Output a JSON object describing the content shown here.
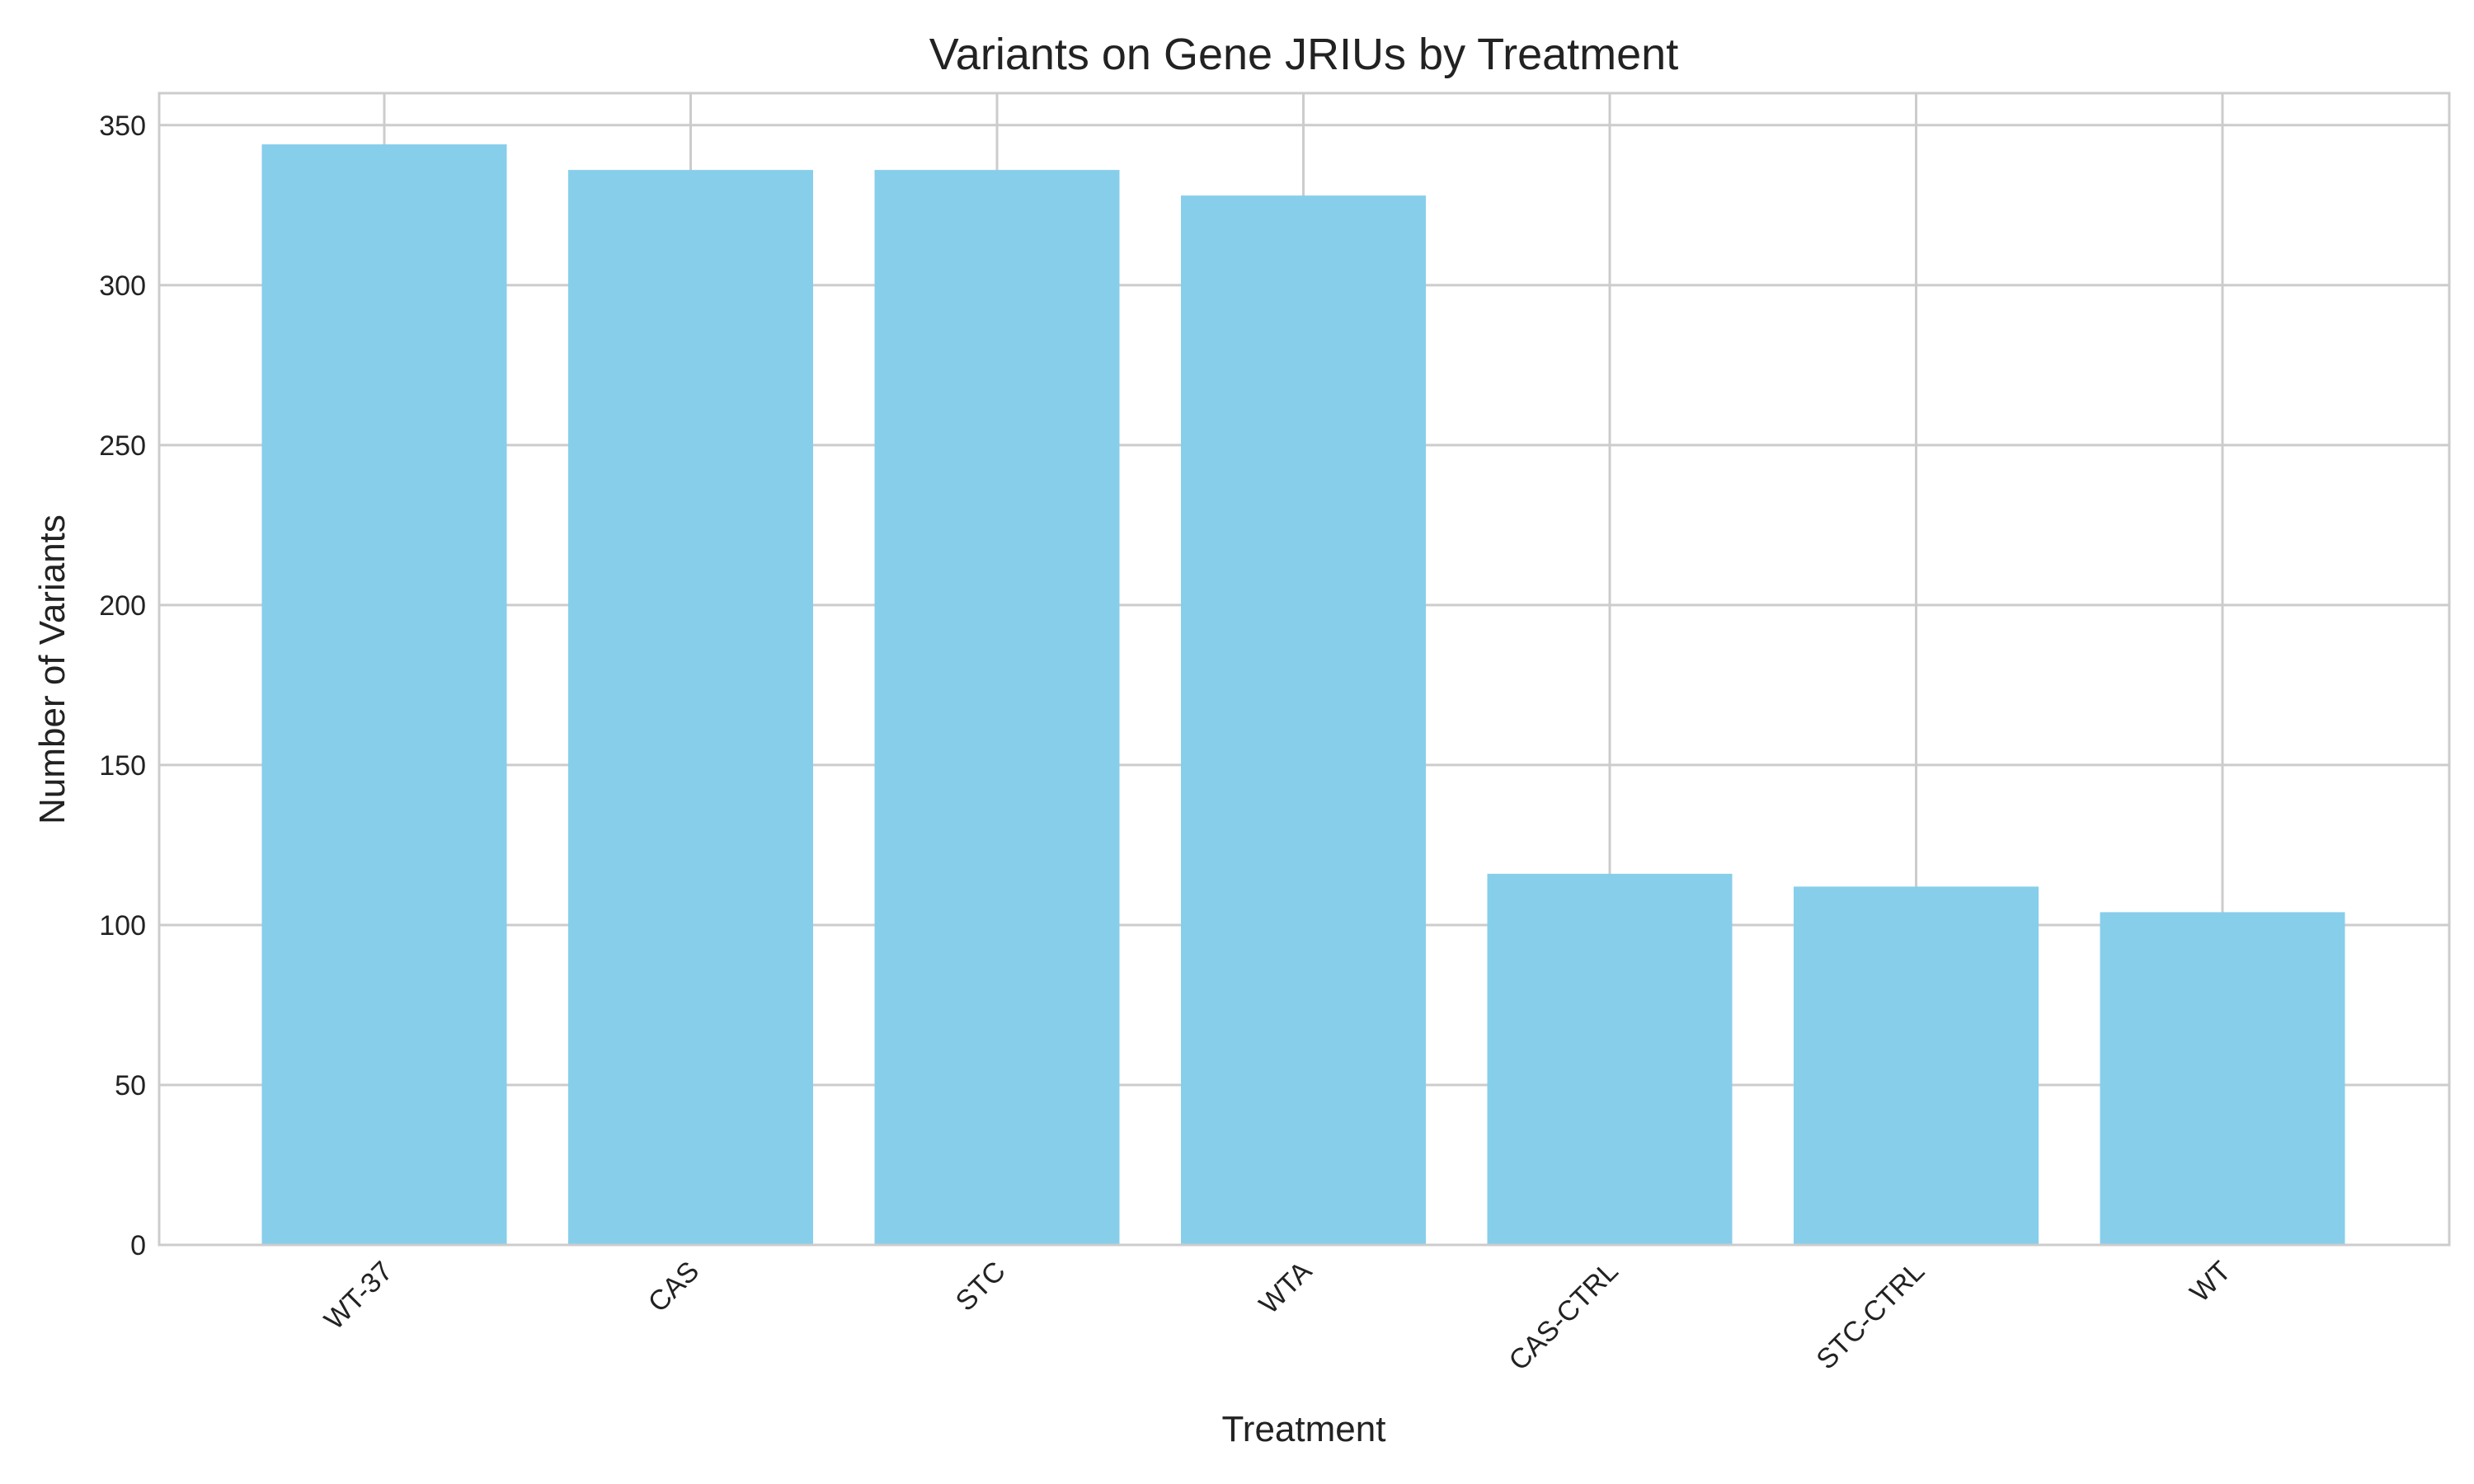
{
  "chart_data": {
    "type": "bar",
    "title": "Variants on Gene JRIUs by Treatment",
    "xlabel": "Treatment",
    "ylabel": "Number of Variants",
    "categories": [
      "WT-37",
      "CAS",
      "STC",
      "WTA",
      "CAS-CTRL",
      "STC-CTRL",
      "WT"
    ],
    "values": [
      344,
      336,
      336,
      328,
      116,
      112,
      104
    ],
    "ylim": [
      0,
      360
    ],
    "yticks": [
      0,
      50,
      100,
      150,
      200,
      250,
      300,
      350
    ],
    "grid": true,
    "legend": "none",
    "bar_color": "#87CEEB"
  }
}
